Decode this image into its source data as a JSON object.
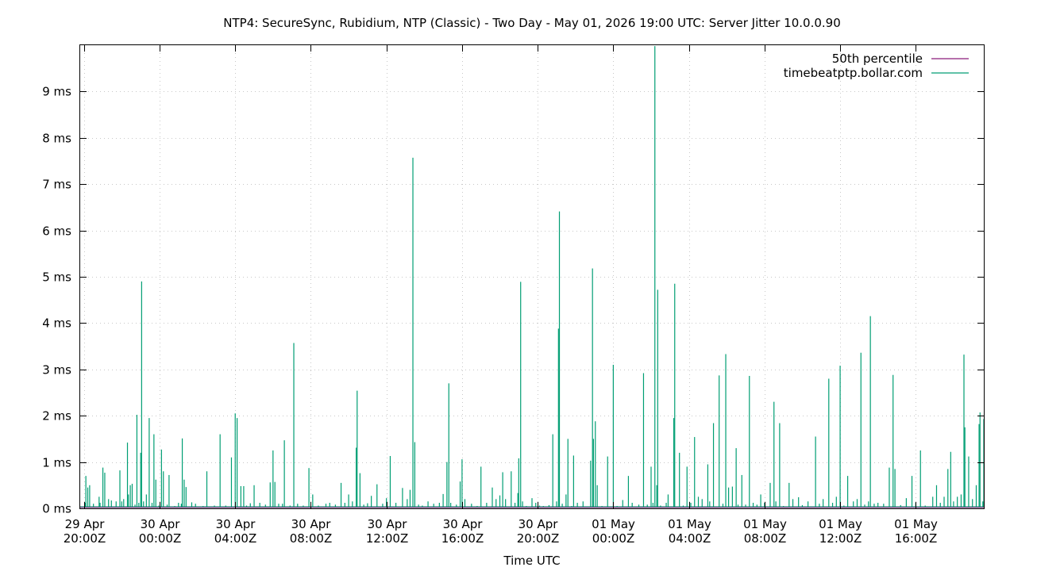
{
  "chart_data": {
    "type": "line",
    "title": "NTP4: SecureSync, Rubidium, NTP (Classic) - Two Day - May 01, 2026 19:00 UTC: Server Jitter 10.0.0.90",
    "xlabel": "Time UTC",
    "ylabel": "",
    "x_range_hours": [
      -0.2,
      47.6
    ],
    "ylim": [
      0,
      10
    ],
    "grid": true,
    "legend_position": "top-right",
    "x_ticks": [
      {
        "hour": 0,
        "line1": "29 Apr",
        "line2": "20:00Z"
      },
      {
        "hour": 4,
        "line1": "30 Apr",
        "line2": "00:00Z"
      },
      {
        "hour": 8,
        "line1": "30 Apr",
        "line2": "04:00Z"
      },
      {
        "hour": 12,
        "line1": "30 Apr",
        "line2": "08:00Z"
      },
      {
        "hour": 16,
        "line1": "30 Apr",
        "line2": "12:00Z"
      },
      {
        "hour": 20,
        "line1": "30 Apr",
        "line2": "16:00Z"
      },
      {
        "hour": 24,
        "line1": "30 Apr",
        "line2": "20:00Z"
      },
      {
        "hour": 28,
        "line1": "01 May",
        "line2": "00:00Z"
      },
      {
        "hour": 32,
        "line1": "01 May",
        "line2": "04:00Z"
      },
      {
        "hour": 36,
        "line1": "01 May",
        "line2": "08:00Z"
      },
      {
        "hour": 40,
        "line1": "01 May",
        "line2": "12:00Z"
      },
      {
        "hour": 44,
        "line1": "01 May",
        "line2": "16:00Z"
      }
    ],
    "y_ticks": [
      {
        "value": 0,
        "label": "0 ms"
      },
      {
        "value": 1,
        "label": "1 ms"
      },
      {
        "value": 2,
        "label": "2 ms"
      },
      {
        "value": 3,
        "label": "3 ms"
      },
      {
        "value": 4,
        "label": "4 ms"
      },
      {
        "value": 5,
        "label": "5 ms"
      },
      {
        "value": 6,
        "label": "6 ms"
      },
      {
        "value": 7,
        "label": "7 ms"
      },
      {
        "value": 8,
        "label": "8 ms"
      },
      {
        "value": 9,
        "label": "9 ms"
      }
    ],
    "series": [
      {
        "name": "50th percentile",
        "color": "#8b1a7a",
        "value_ms": 0.02
      },
      {
        "name": "timebeatptp.bollar.com",
        "color": "#009e73",
        "baseline_ms": 0.03,
        "spikes": [
          [
            0.06,
            0.12
          ],
          [
            0.1,
            0.7
          ],
          [
            0.2,
            0.45
          ],
          [
            0.3,
            0.5
          ],
          [
            0.5,
            0.1
          ],
          [
            0.8,
            0.25
          ],
          [
            0.85,
            0.12
          ],
          [
            1.0,
            0.88
          ],
          [
            1.1,
            0.77
          ],
          [
            1.3,
            0.2
          ],
          [
            1.45,
            0.17
          ],
          [
            1.7,
            0.15
          ],
          [
            1.9,
            0.82
          ],
          [
            2.0,
            0.15
          ],
          [
            2.1,
            0.2
          ],
          [
            2.3,
            1.42
          ],
          [
            2.35,
            0.3
          ],
          [
            2.45,
            0.5
          ],
          [
            2.55,
            0.53
          ],
          [
            2.7,
            0.08
          ],
          [
            2.8,
            2.02
          ],
          [
            2.9,
            0.12
          ],
          [
            3.0,
            1.2
          ],
          [
            3.05,
            4.9
          ],
          [
            3.15,
            0.15
          ],
          [
            3.3,
            0.3
          ],
          [
            3.45,
            1.95
          ],
          [
            3.6,
            0.12
          ],
          [
            3.7,
            1.6
          ],
          [
            3.8,
            0.62
          ],
          [
            3.95,
            0.06
          ],
          [
            4.1,
            1.27
          ],
          [
            4.2,
            0.8
          ],
          [
            4.4,
            0.08
          ],
          [
            4.5,
            0.72
          ],
          [
            4.8,
            0.05
          ],
          [
            5.0,
            0.12
          ],
          [
            5.15,
            0.1
          ],
          [
            5.2,
            1.51
          ],
          [
            5.3,
            0.62
          ],
          [
            5.4,
            0.46
          ],
          [
            5.7,
            0.13
          ],
          [
            5.9,
            0.1
          ],
          [
            6.3,
            0.05
          ],
          [
            6.5,
            0.8
          ],
          [
            6.9,
            0.06
          ],
          [
            7.2,
            1.6
          ],
          [
            7.5,
            0.06
          ],
          [
            7.8,
            1.1
          ],
          [
            8.0,
            2.05
          ],
          [
            8.1,
            1.95
          ],
          [
            8.3,
            0.48
          ],
          [
            8.45,
            0.48
          ],
          [
            8.6,
            0.06
          ],
          [
            8.8,
            0.11
          ],
          [
            9.0,
            0.5
          ],
          [
            9.3,
            0.12
          ],
          [
            9.6,
            0.08
          ],
          [
            9.85,
            0.56
          ],
          [
            10.0,
            1.25
          ],
          [
            10.1,
            0.57
          ],
          [
            10.3,
            0.1
          ],
          [
            10.5,
            0.1
          ],
          [
            10.6,
            1.47
          ],
          [
            10.9,
            0.06
          ],
          [
            11.1,
            3.57
          ],
          [
            11.3,
            0.1
          ],
          [
            11.6,
            0.06
          ],
          [
            11.9,
            0.87
          ],
          [
            12.1,
            0.3
          ],
          [
            12.4,
            0.06
          ],
          [
            12.8,
            0.1
          ],
          [
            13.0,
            0.12
          ],
          [
            13.3,
            0.08
          ],
          [
            13.6,
            0.55
          ],
          [
            13.8,
            0.12
          ],
          [
            14.0,
            0.3
          ],
          [
            14.2,
            0.15
          ],
          [
            14.4,
            1.31
          ],
          [
            14.45,
            2.54
          ],
          [
            14.6,
            0.76
          ],
          [
            14.8,
            0.08
          ],
          [
            15.0,
            0.11
          ],
          [
            15.2,
            0.27
          ],
          [
            15.5,
            0.52
          ],
          [
            15.8,
            0.1
          ],
          [
            16.0,
            0.22
          ],
          [
            16.2,
            1.13
          ],
          [
            16.5,
            0.12
          ],
          [
            16.85,
            0.44
          ],
          [
            17.1,
            0.2
          ],
          [
            17.25,
            0.4
          ],
          [
            17.4,
            7.57
          ],
          [
            17.5,
            1.43
          ],
          [
            17.7,
            0.08
          ],
          [
            17.9,
            0.06
          ],
          [
            18.2,
            0.15
          ],
          [
            18.5,
            0.1
          ],
          [
            18.8,
            0.12
          ],
          [
            19.0,
            0.31
          ],
          [
            19.2,
            1.0
          ],
          [
            19.3,
            2.7
          ],
          [
            19.4,
            0.12
          ],
          [
            19.7,
            0.08
          ],
          [
            19.9,
            0.58
          ],
          [
            20.0,
            1.06
          ],
          [
            20.15,
            0.2
          ],
          [
            20.5,
            0.1
          ],
          [
            20.8,
            0.05
          ],
          [
            21.0,
            0.9
          ],
          [
            21.3,
            0.12
          ],
          [
            21.6,
            0.45
          ],
          [
            21.8,
            0.2
          ],
          [
            22.0,
            0.28
          ],
          [
            22.15,
            0.78
          ],
          [
            22.3,
            0.2
          ],
          [
            22.6,
            0.8
          ],
          [
            22.8,
            0.12
          ],
          [
            22.95,
            0.33
          ],
          [
            23.0,
            1.08
          ],
          [
            23.1,
            4.89
          ],
          [
            23.2,
            0.15
          ],
          [
            23.4,
            0.05
          ],
          [
            23.7,
            0.22
          ],
          [
            23.9,
            0.12
          ],
          [
            24.1,
            0.06
          ],
          [
            24.3,
            0.05
          ],
          [
            24.6,
            0.07
          ],
          [
            24.8,
            1.6
          ],
          [
            25.0,
            0.15
          ],
          [
            25.1,
            3.88
          ],
          [
            25.15,
            6.41
          ],
          [
            25.3,
            0.1
          ],
          [
            25.5,
            0.3
          ],
          [
            25.6,
            1.5
          ],
          [
            25.8,
            0.05
          ],
          [
            25.9,
            1.14
          ],
          [
            26.1,
            0.12
          ],
          [
            26.4,
            0.15
          ],
          [
            26.8,
            1.03
          ],
          [
            26.9,
            5.18
          ],
          [
            26.95,
            1.5
          ],
          [
            27.05,
            1.88
          ],
          [
            27.15,
            0.5
          ],
          [
            27.4,
            0.05
          ],
          [
            27.7,
            1.12
          ],
          [
            28.0,
            3.1
          ],
          [
            28.2,
            0.05
          ],
          [
            28.5,
            0.18
          ],
          [
            28.8,
            0.7
          ],
          [
            29.0,
            0.12
          ],
          [
            29.35,
            0.08
          ],
          [
            29.6,
            2.92
          ],
          [
            29.8,
            0.08
          ],
          [
            30.0,
            0.9
          ],
          [
            30.1,
            0.12
          ],
          [
            30.2,
            9.98
          ],
          [
            30.3,
            0.5
          ],
          [
            30.35,
            4.72
          ],
          [
            30.5,
            0.06
          ],
          [
            30.8,
            0.12
          ],
          [
            30.9,
            0.3
          ],
          [
            31.2,
            1.95
          ],
          [
            31.25,
            4.85
          ],
          [
            31.5,
            1.2
          ],
          [
            31.7,
            0.06
          ],
          [
            31.9,
            0.9
          ],
          [
            32.1,
            0.12
          ],
          [
            32.3,
            1.54
          ],
          [
            32.5,
            0.25
          ],
          [
            32.7,
            0.2
          ],
          [
            33.0,
            0.95
          ],
          [
            33.1,
            0.15
          ],
          [
            33.3,
            1.84
          ],
          [
            33.6,
            2.87
          ],
          [
            33.8,
            0.1
          ],
          [
            33.95,
            3.33
          ],
          [
            34.1,
            0.45
          ],
          [
            34.3,
            0.47
          ],
          [
            34.5,
            1.3
          ],
          [
            34.6,
            0.08
          ],
          [
            34.8,
            0.72
          ],
          [
            35.0,
            0.08
          ],
          [
            35.2,
            2.86
          ],
          [
            35.4,
            0.12
          ],
          [
            35.6,
            0.08
          ],
          [
            35.8,
            0.3
          ],
          [
            36.0,
            0.12
          ],
          [
            36.3,
            0.55
          ],
          [
            36.5,
            2.3
          ],
          [
            36.6,
            0.15
          ],
          [
            36.8,
            1.84
          ],
          [
            37.0,
            0.05
          ],
          [
            37.3,
            0.55
          ],
          [
            37.5,
            0.2
          ],
          [
            37.8,
            0.24
          ],
          [
            38.0,
            0.07
          ],
          [
            38.3,
            0.15
          ],
          [
            38.7,
            1.55
          ],
          [
            38.9,
            0.1
          ],
          [
            39.1,
            0.2
          ],
          [
            39.4,
            2.8
          ],
          [
            39.6,
            0.12
          ],
          [
            39.8,
            0.25
          ],
          [
            40.0,
            3.08
          ],
          [
            40.2,
            0.06
          ],
          [
            40.4,
            0.7
          ],
          [
            40.7,
            0.15
          ],
          [
            40.9,
            0.2
          ],
          [
            41.1,
            3.36
          ],
          [
            41.3,
            0.08
          ],
          [
            41.5,
            0.15
          ],
          [
            41.6,
            4.15
          ],
          [
            41.8,
            0.1
          ],
          [
            42.0,
            0.12
          ],
          [
            42.3,
            0.1
          ],
          [
            42.6,
            0.88
          ],
          [
            42.8,
            2.88
          ],
          [
            42.9,
            0.85
          ],
          [
            43.2,
            0.07
          ],
          [
            43.5,
            0.22
          ],
          [
            43.8,
            0.7
          ],
          [
            44.0,
            0.12
          ],
          [
            44.25,
            1.25
          ],
          [
            44.5,
            0.06
          ],
          [
            44.9,
            0.25
          ],
          [
            45.1,
            0.5
          ],
          [
            45.3,
            0.12
          ],
          [
            45.5,
            0.25
          ],
          [
            45.7,
            0.85
          ],
          [
            45.85,
            1.22
          ],
          [
            46.0,
            0.15
          ],
          [
            46.2,
            0.25
          ],
          [
            46.4,
            0.3
          ],
          [
            46.55,
            3.32
          ],
          [
            46.6,
            1.75
          ],
          [
            46.8,
            1.12
          ],
          [
            47.0,
            0.2
          ],
          [
            47.2,
            0.5
          ],
          [
            47.35,
            1.82
          ],
          [
            47.4,
            2.07
          ],
          [
            47.55,
            0.15
          ],
          [
            47.6,
            1.93
          ]
        ]
      }
    ]
  }
}
